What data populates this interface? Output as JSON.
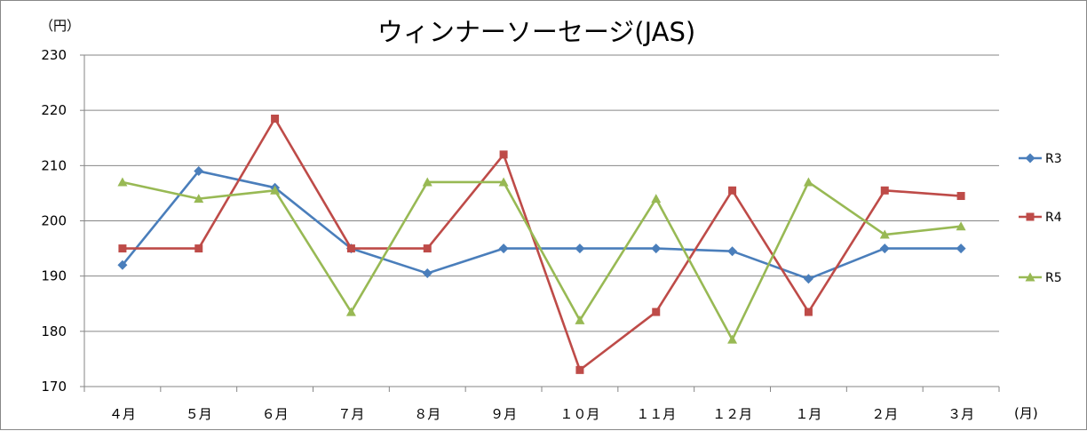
{
  "chart_data": {
    "type": "line",
    "title": "ウィンナーソーセージ(JAS)",
    "ylabel": "（円）",
    "xlabel": "(月)",
    "ylim": [
      170,
      230
    ],
    "yticks": [
      170,
      180,
      190,
      200,
      210,
      220,
      230
    ],
    "grid": true,
    "legend_position": "right",
    "categories": [
      "４月",
      "５月",
      "６月",
      "７月",
      "８月",
      "９月",
      "１０月",
      "１１月",
      "１２月",
      "１月",
      "２月",
      "３月"
    ],
    "series": [
      {
        "name": "R3",
        "color": "#4a7ebb",
        "marker": "diamond",
        "values": [
          192,
          209,
          206,
          195,
          190.5,
          195,
          195,
          195,
          194.5,
          189.5,
          195,
          195
        ]
      },
      {
        "name": "R4",
        "color": "#be4b48",
        "marker": "square",
        "values": [
          195,
          195,
          218.5,
          195,
          195,
          212,
          173,
          183.5,
          205.5,
          183.5,
          205.5,
          204.5
        ]
      },
      {
        "name": "R5",
        "color": "#98b954",
        "marker": "triangle",
        "values": [
          207,
          204,
          205.5,
          183.5,
          207,
          207,
          182,
          204,
          178.5,
          207,
          197.5,
          199
        ]
      }
    ]
  }
}
